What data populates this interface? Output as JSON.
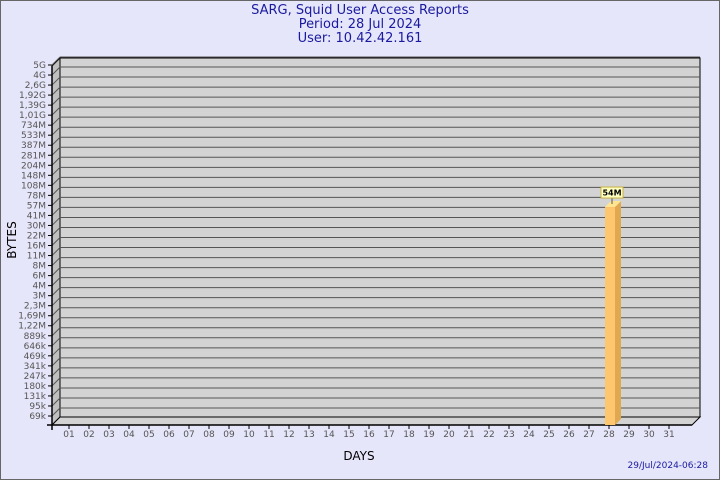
{
  "header": {
    "title": "SARG, Squid User Access Reports",
    "period": "Period: 28 Jul 2024",
    "user": "User: 10.42.42.161"
  },
  "footer": {
    "timestamp": "29/Jul/2024-06:28"
  },
  "colors": {
    "background": "#e6e6fa",
    "plot": "#d3d3d3",
    "bar": "#fec66e",
    "bar_side": "#e0a850",
    "title": "#1a1aa0"
  },
  "chart_data": {
    "type": "bar",
    "title": "SARG, Squid User Access Reports",
    "xlabel": "DAYS",
    "ylabel": "BYTES",
    "yscale": "log",
    "y_ticks": [
      "5G",
      "4G",
      "2,6G",
      "1,92G",
      "1,39G",
      "1,01G",
      "734M",
      "533M",
      "387M",
      "281M",
      "204M",
      "148M",
      "108M",
      "78M",
      "57M",
      "41M",
      "30M",
      "22M",
      "16M",
      "11M",
      "8M",
      "6M",
      "4M",
      "3M",
      "2,3M",
      "1,69M",
      "1,22M",
      "889k",
      "646k",
      "469k",
      "341k",
      "247k",
      "180k",
      "131k",
      "95k",
      "69k"
    ],
    "ylim": [
      69000,
      5000000000
    ],
    "grid": true,
    "categories": [
      "01",
      "02",
      "03",
      "04",
      "05",
      "06",
      "07",
      "08",
      "09",
      "10",
      "11",
      "12",
      "13",
      "14",
      "15",
      "16",
      "17",
      "18",
      "19",
      "20",
      "21",
      "22",
      "23",
      "24",
      "25",
      "26",
      "27",
      "28",
      "29",
      "30",
      "31"
    ],
    "bars": [
      {
        "category": "28",
        "value": 54000000,
        "label": "54M"
      }
    ]
  }
}
